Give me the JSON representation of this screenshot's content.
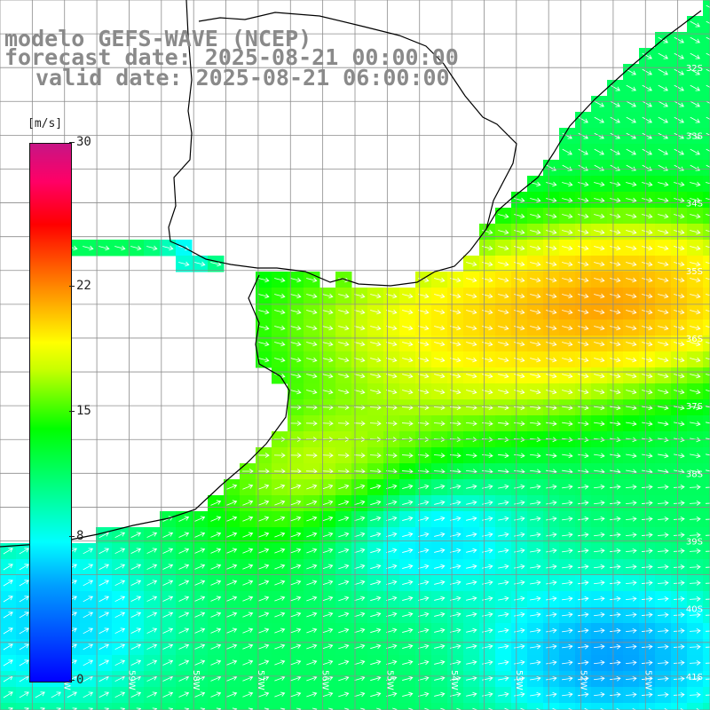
{
  "header": {
    "model_line": "modelo GEFS-WAVE (NCEP)",
    "forecast_line": "forecast date: 2025-08-21 00:00:00",
    "valid_line": "valid date: 2025-08-21 06:00:00"
  },
  "colorbar": {
    "units": "[m/s]",
    "ticks": [
      {
        "label": "30",
        "value": 30
      },
      {
        "label": "22",
        "value": 22
      },
      {
        "label": "15",
        "value": 15
      },
      {
        "label": "8",
        "value": 8
      },
      {
        "label": "0",
        "value": 0
      }
    ],
    "min": 0,
    "max": 30
  },
  "map": {
    "lat_labels": [
      "32S",
      "33S",
      "34S",
      "35S",
      "36S",
      "37S",
      "38S",
      "39S",
      "40S",
      "41S"
    ],
    "lon_labels": [
      "60W",
      "59W",
      "58W",
      "57W",
      "56W",
      "55W",
      "54W",
      "53W",
      "52W",
      "51W"
    ],
    "lat_range": [
      -41.5,
      -31
    ],
    "lon_range": [
      -61,
      -50
    ],
    "colors": {
      "land": "#ffffff",
      "coast": "#000000",
      "grid": "#8c8c8c",
      "arrow": "#ffffff"
    },
    "field": "wind speed with direction arrows"
  }
}
